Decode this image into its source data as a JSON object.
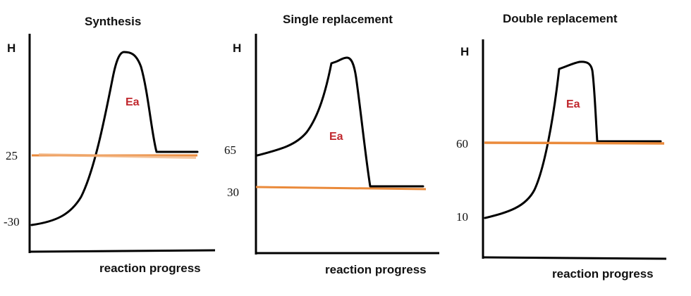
{
  "colors": {
    "axis": "#000000",
    "curve": "#000000",
    "energy_line": "#ea8a3b",
    "ea_label": "#c0272d",
    "text": "#111111"
  },
  "diagrams": [
    {
      "title": "Synthesis",
      "ylabel": "H",
      "xlabel": "reaction progress",
      "ea_label": "Ea",
      "ticks": [
        "25",
        "-30"
      ]
    },
    {
      "title": "Single replacement",
      "ylabel": "H",
      "xlabel": "reaction progress",
      "ea_label": "Ea",
      "ticks": [
        "65",
        "30"
      ]
    },
    {
      "title": "Double replacement",
      "ylabel": "H",
      "xlabel": "reaction progress",
      "ea_label": "Ea",
      "ticks": [
        "60",
        "10"
      ]
    }
  ]
}
